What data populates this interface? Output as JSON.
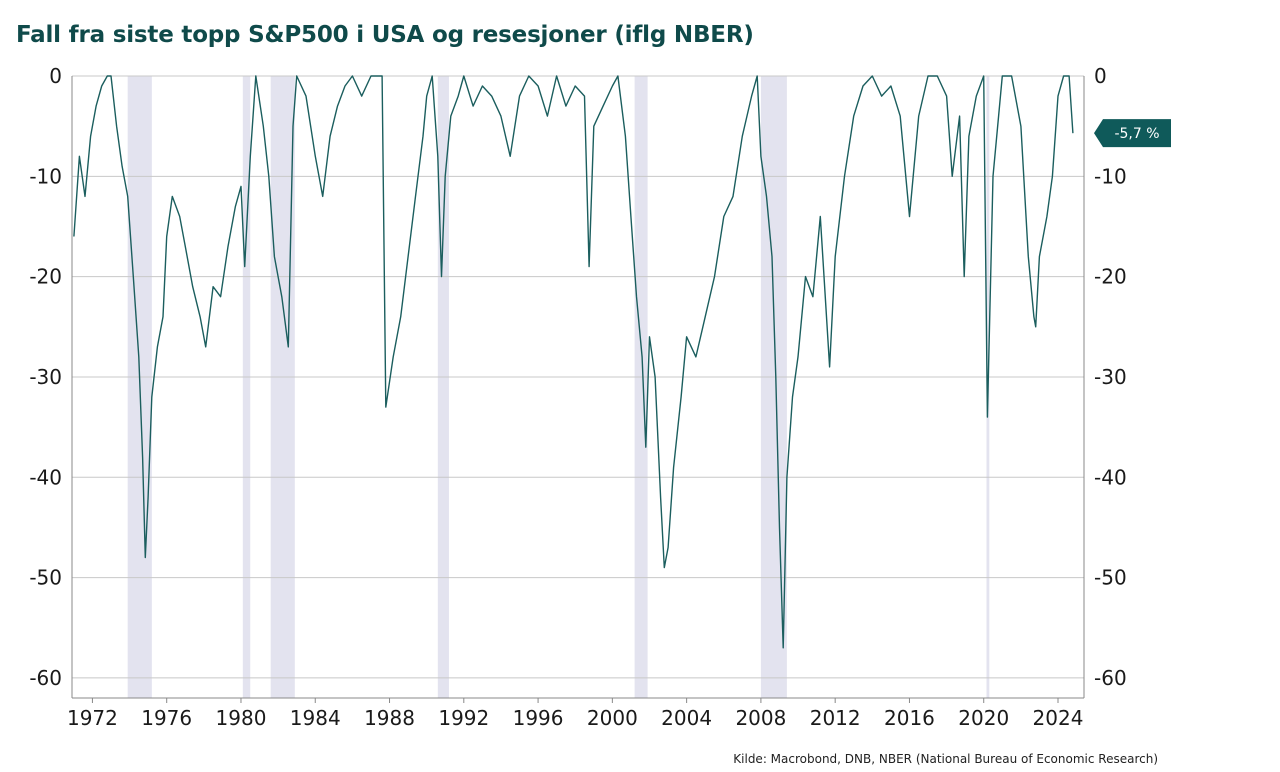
{
  "chart_data": {
    "type": "line",
    "title": "Fall fra siste topp S&P500 i USA og resesjoner (iflg NBER)",
    "source": "Kilde: Macrobond, DNB, NBER (National Bureau of Economic Research)",
    "xlabel": "",
    "ylabel": "",
    "xlim": [
      1970.9,
      2025.4
    ],
    "ylim": [
      -62,
      0
    ],
    "x_ticks": [
      1972,
      1976,
      1980,
      1984,
      1988,
      1992,
      1996,
      2000,
      2004,
      2008,
      2012,
      2016,
      2020,
      2024
    ],
    "x_tick_labels": [
      "1972",
      "1976",
      "1980",
      "1984",
      "1988",
      "1992",
      "1996",
      "2000",
      "2004",
      "2008",
      "2012",
      "2016",
      "2020",
      "2024"
    ],
    "y_ticks": [
      0,
      -10,
      -20,
      -30,
      -40,
      -50,
      -60
    ],
    "y_tick_labels": [
      "0",
      "-10",
      "-20",
      "-30",
      "-40",
      "-50",
      "-60"
    ],
    "grid": "horizontal",
    "line_color": "#1b5e5e",
    "recession_color": "#e3e3ef",
    "recessions": [
      [
        1973.9,
        1975.2
      ],
      [
        1980.1,
        1980.5
      ],
      [
        1981.6,
        1982.9
      ],
      [
        1990.6,
        1991.2
      ],
      [
        2001.2,
        2001.9
      ],
      [
        2008.0,
        2009.4
      ],
      [
        2020.15,
        2020.3
      ]
    ],
    "series": [
      {
        "values": [
          [
            1971.0,
            -16
          ],
          [
            1971.3,
            -8
          ],
          [
            1971.6,
            -12
          ],
          [
            1971.9,
            -6
          ],
          [
            1972.2,
            -3
          ],
          [
            1972.5,
            -1
          ],
          [
            1972.8,
            0
          ],
          [
            1973.0,
            0
          ],
          [
            1973.3,
            -5
          ],
          [
            1973.6,
            -9
          ],
          [
            1973.9,
            -12
          ],
          [
            1974.2,
            -20
          ],
          [
            1974.5,
            -28
          ],
          [
            1974.7,
            -38
          ],
          [
            1974.85,
            -48
          ],
          [
            1975.0,
            -42
          ],
          [
            1975.2,
            -32
          ],
          [
            1975.5,
            -27
          ],
          [
            1975.8,
            -24
          ],
          [
            1976.0,
            -16
          ],
          [
            1976.3,
            -12
          ],
          [
            1976.7,
            -14
          ],
          [
            1977.0,
            -17
          ],
          [
            1977.4,
            -21
          ],
          [
            1977.8,
            -24
          ],
          [
            1978.1,
            -27
          ],
          [
            1978.5,
            -21
          ],
          [
            1978.9,
            -22
          ],
          [
            1979.3,
            -17
          ],
          [
            1979.7,
            -13
          ],
          [
            1980.0,
            -11
          ],
          [
            1980.2,
            -19
          ],
          [
            1980.5,
            -8
          ],
          [
            1980.8,
            0
          ],
          [
            1981.2,
            -5
          ],
          [
            1981.5,
            -10
          ],
          [
            1981.8,
            -18
          ],
          [
            1982.2,
            -22
          ],
          [
            1982.55,
            -27
          ],
          [
            1982.8,
            -5
          ],
          [
            1983.0,
            0
          ],
          [
            1983.5,
            -2
          ],
          [
            1984.0,
            -8
          ],
          [
            1984.4,
            -12
          ],
          [
            1984.8,
            -6
          ],
          [
            1985.2,
            -3
          ],
          [
            1985.6,
            -1
          ],
          [
            1986.0,
            0
          ],
          [
            1986.5,
            -2
          ],
          [
            1987.0,
            0
          ],
          [
            1987.6,
            0
          ],
          [
            1987.8,
            -33
          ],
          [
            1988.2,
            -28
          ],
          [
            1988.6,
            -24
          ],
          [
            1989.0,
            -18
          ],
          [
            1989.4,
            -12
          ],
          [
            1989.8,
            -6
          ],
          [
            1990.0,
            -2
          ],
          [
            1990.3,
            0
          ],
          [
            1990.6,
            -8
          ],
          [
            1990.8,
            -20
          ],
          [
            1991.0,
            -10
          ],
          [
            1991.3,
            -4
          ],
          [
            1991.7,
            -2
          ],
          [
            1992.0,
            0
          ],
          [
            1992.5,
            -3
          ],
          [
            1993.0,
            -1
          ],
          [
            1993.5,
            -2
          ],
          [
            1994.0,
            -4
          ],
          [
            1994.5,
            -8
          ],
          [
            1995.0,
            -2
          ],
          [
            1995.5,
            0
          ],
          [
            1996.0,
            -1
          ],
          [
            1996.5,
            -4
          ],
          [
            1997.0,
            0
          ],
          [
            1997.5,
            -3
          ],
          [
            1998.0,
            -1
          ],
          [
            1998.5,
            -2
          ],
          [
            1998.75,
            -19
          ],
          [
            1999.0,
            -5
          ],
          [
            1999.5,
            -3
          ],
          [
            2000.0,
            -1
          ],
          [
            2000.3,
            0
          ],
          [
            2000.7,
            -6
          ],
          [
            2001.0,
            -14
          ],
          [
            2001.3,
            -22
          ],
          [
            2001.6,
            -28
          ],
          [
            2001.8,
            -37
          ],
          [
            2002.0,
            -26
          ],
          [
            2002.3,
            -30
          ],
          [
            2002.6,
            -42
          ],
          [
            2002.8,
            -49
          ],
          [
            2003.0,
            -47
          ],
          [
            2003.3,
            -39
          ],
          [
            2003.7,
            -32
          ],
          [
            2004.0,
            -26
          ],
          [
            2004.5,
            -28
          ],
          [
            2005.0,
            -24
          ],
          [
            2005.5,
            -20
          ],
          [
            2006.0,
            -14
          ],
          [
            2006.5,
            -12
          ],
          [
            2007.0,
            -6
          ],
          [
            2007.5,
            -2
          ],
          [
            2007.8,
            0
          ],
          [
            2008.0,
            -8
          ],
          [
            2008.3,
            -12
          ],
          [
            2008.6,
            -18
          ],
          [
            2008.8,
            -30
          ],
          [
            2009.0,
            -45
          ],
          [
            2009.2,
            -57
          ],
          [
            2009.4,
            -40
          ],
          [
            2009.7,
            -32
          ],
          [
            2010.0,
            -28
          ],
          [
            2010.4,
            -20
          ],
          [
            2010.8,
            -22
          ],
          [
            2011.2,
            -14
          ],
          [
            2011.7,
            -29
          ],
          [
            2012.0,
            -18
          ],
          [
            2012.5,
            -10
          ],
          [
            2013.0,
            -4
          ],
          [
            2013.5,
            -1
          ],
          [
            2014.0,
            0
          ],
          [
            2014.5,
            -2
          ],
          [
            2015.0,
            -1
          ],
          [
            2015.5,
            -4
          ],
          [
            2016.0,
            -14
          ],
          [
            2016.5,
            -4
          ],
          [
            2017.0,
            0
          ],
          [
            2017.5,
            0
          ],
          [
            2018.0,
            -2
          ],
          [
            2018.3,
            -10
          ],
          [
            2018.7,
            -4
          ],
          [
            2018.95,
            -20
          ],
          [
            2019.2,
            -6
          ],
          [
            2019.6,
            -2
          ],
          [
            2020.0,
            0
          ],
          [
            2020.2,
            -34
          ],
          [
            2020.5,
            -10
          ],
          [
            2020.8,
            -4
          ],
          [
            2021.0,
            0
          ],
          [
            2021.5,
            0
          ],
          [
            2022.0,
            -5
          ],
          [
            2022.4,
            -18
          ],
          [
            2022.7,
            -24
          ],
          [
            2022.8,
            -25
          ],
          [
            2023.0,
            -18
          ],
          [
            2023.4,
            -14
          ],
          [
            2023.7,
            -10
          ],
          [
            2024.0,
            -2
          ],
          [
            2024.3,
            0
          ],
          [
            2024.6,
            0
          ],
          [
            2024.8,
            -5.7
          ]
        ]
      }
    ],
    "last_value_label": "-5,7 %",
    "last_value": -5.7,
    "last_value_color": "#0f5a5a"
  }
}
